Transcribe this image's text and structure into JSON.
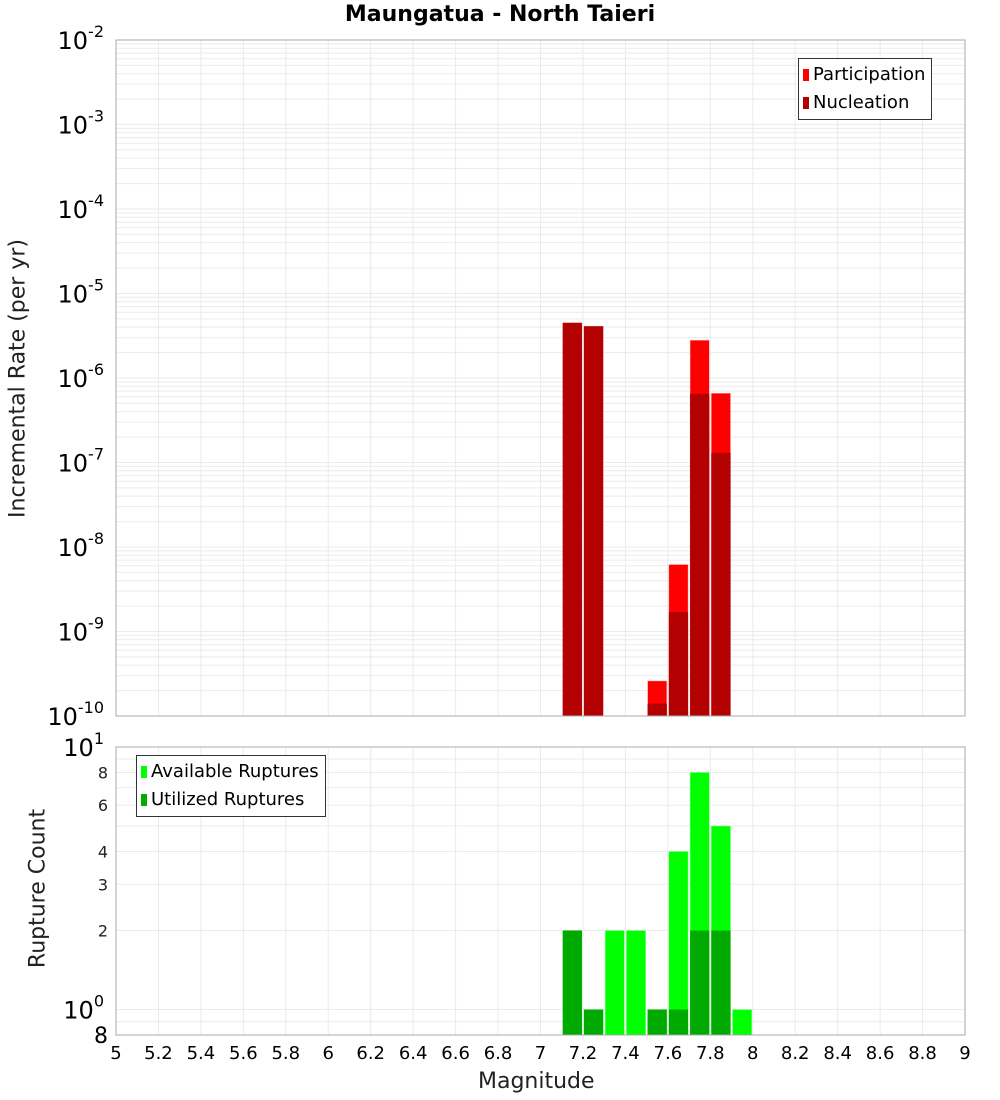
{
  "title": "Maungatua - North Taieri",
  "colors": {
    "participation": "#ff0000",
    "nucleation": "#b30000",
    "available": "#00ff00",
    "utilized": "#00aa00",
    "grid": "#ebebeb",
    "border": "#aaaaaa"
  },
  "chart_data": [
    {
      "type": "bar",
      "title": "Maungatua - North Taieri",
      "xlabel": "Magnitude",
      "ylabel": "Incremental Rate (per yr)",
      "yscale": "log",
      "ylim": [
        1e-10,
        0.01
      ],
      "xlim": [
        5,
        9
      ],
      "grid": true,
      "legend_position": "top-right",
      "y_tick_labels": [
        "10^-2",
        "10^-3",
        "10^-4",
        "10^-5",
        "10^-6",
        "10^-7",
        "10^-8",
        "10^-9",
        "10^-10"
      ],
      "x": [
        7.15,
        7.25,
        7.55,
        7.65,
        7.75,
        7.85
      ],
      "series": [
        {
          "name": "Participation",
          "values": [
            4.5e-06,
            4.1e-06,
            2.6e-10,
            6.2e-09,
            2.8e-06,
            6.6e-07
          ]
        },
        {
          "name": "Nucleation",
          "values": [
            4.5e-06,
            4.1e-06,
            1.4e-10,
            1.7e-09,
            6.5e-07,
            1.3e-07
          ]
        }
      ]
    },
    {
      "type": "bar",
      "xlabel": "Magnitude",
      "ylabel": "Rupture Count",
      "yscale": "log",
      "ylim": [
        0.8,
        10
      ],
      "xlim": [
        5,
        9
      ],
      "grid": true,
      "legend_position": "top-left",
      "y_tick_labels": [
        "10^1",
        "8",
        "6",
        "4",
        "3",
        "2",
        "10^0",
        "8"
      ],
      "x_tick_labels": [
        "5",
        "5.2",
        "5.4",
        "5.6",
        "5.8",
        "6",
        "6.2",
        "6.4",
        "6.6",
        "6.8",
        "7",
        "7.2",
        "7.4",
        "7.6",
        "7.8",
        "8",
        "8.2",
        "8.4",
        "8.6",
        "8.8",
        "9"
      ],
      "x": [
        7.15,
        7.25,
        7.35,
        7.45,
        7.55,
        7.65,
        7.75,
        7.85,
        7.95
      ],
      "series": [
        {
          "name": "Available Ruptures",
          "values": [
            2,
            1,
            2,
            2,
            1,
            4,
            8,
            5,
            1
          ]
        },
        {
          "name": "Utilized Ruptures",
          "values": [
            2,
            1,
            0,
            0,
            1,
            1,
            2,
            2,
            0
          ]
        }
      ]
    }
  ],
  "legend_top": [
    "Participation",
    "Nucleation"
  ],
  "legend_bottom": [
    "Available Ruptures",
    "Utilized Ruptures"
  ]
}
